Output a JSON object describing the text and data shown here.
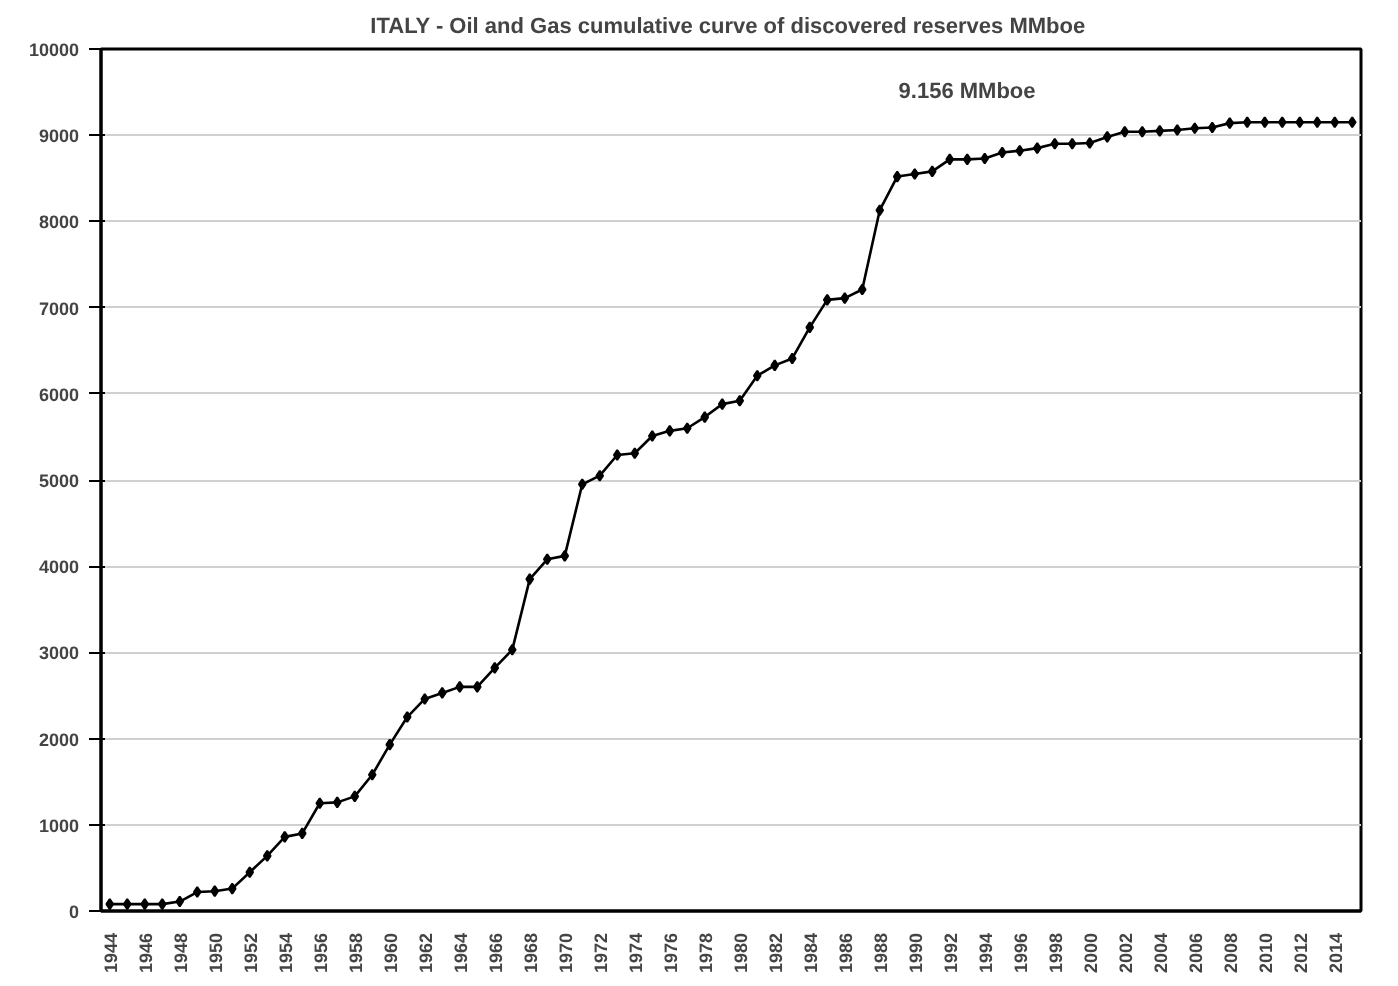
{
  "chart_data": {
    "type": "line",
    "title": "ITALY - Oil and Gas cumulative curve of discovered reserves  MMboe",
    "categories": [
      "1944",
      null,
      "1946",
      null,
      "1948",
      null,
      "1950",
      null,
      "1952",
      null,
      "1954",
      null,
      "1956",
      null,
      "1958",
      null,
      "1960",
      null,
      "1962",
      null,
      "1964",
      null,
      "1966",
      null,
      "1968",
      null,
      "1970",
      null,
      "1972",
      null,
      "1974",
      null,
      "1976",
      null,
      "1978",
      null,
      "1980",
      null,
      "1982",
      null,
      "1984",
      null,
      "1986",
      null,
      "1988",
      null,
      "1990",
      null,
      "1992",
      null,
      "1994",
      null,
      "1996",
      null,
      "1998",
      null,
      "2000",
      null,
      "2002",
      null,
      "2004",
      null,
      "2006",
      null,
      "2008",
      null,
      "2010",
      null,
      "2012",
      null,
      "2014",
      null
    ],
    "series": [
      {
        "color": "#000000",
        "values": [
          80,
          80,
          80,
          80,
          110,
          220,
          230,
          260,
          450,
          640,
          860,
          900,
          1250,
          1260,
          1330,
          1580,
          1930,
          2250,
          2460,
          2530,
          2600,
          2600,
          2820,
          3030,
          3850,
          4080,
          4120,
          4950,
          5050,
          5290,
          5310,
          5510,
          5570,
          5600,
          5730,
          5880,
          5920,
          6210,
          6330,
          6410,
          6770,
          7090,
          7110,
          7210,
          8130,
          8520,
          8550,
          8580,
          8720,
          8720,
          8730,
          8800,
          8820,
          8850,
          8900,
          8900,
          8910,
          8980,
          9040,
          9040,
          9050,
          9060,
          9080,
          9090,
          9140,
          9150,
          9150,
          9150,
          9150,
          9150,
          9150,
          9150
        ]
      }
    ],
    "annotations": [
      "9.156 MMboe"
    ],
    "ylim": [
      0,
      10000
    ],
    "yticks": [
      0,
      1000,
      2000,
      3000,
      4000,
      5000,
      6000,
      7000,
      8000,
      9000,
      10000
    ],
    "grid": "y",
    "marker": "diamond",
    "line_style": "solid"
  }
}
